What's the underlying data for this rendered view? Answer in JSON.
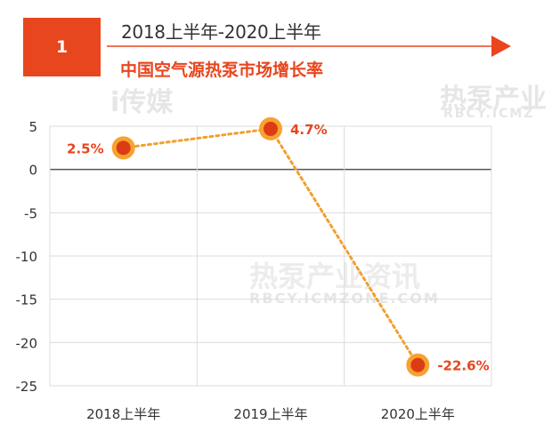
{
  "header": {
    "badge_number": "1",
    "period": "2018上半年-2020上半年",
    "title": "中国空气源热泵市场增长率"
  },
  "colors": {
    "accent": "#e8461e",
    "marker_ring": "#f7a230",
    "marker_core": "#dc3c14",
    "line": "#f0a030",
    "label": "#e8461e",
    "grid": "#dcdcdc",
    "zero_line": "#555555"
  },
  "watermarks": {
    "top_left_brand": "i传媒",
    "top_right_brand": "热泵产业",
    "top_right_url": "RBCY.ICMZ",
    "center_brand": "热泵产业资讯",
    "center_url": "RBCY.ICMZONE.COM"
  },
  "chart_data": {
    "type": "line",
    "categories": [
      "2018上半年",
      "2019上半年",
      "2020上半年"
    ],
    "series": [
      {
        "values": [
          2.5,
          4.7,
          -22.6
        ],
        "labels": [
          "2.5%",
          "4.7%",
          "-22.6%"
        ]
      }
    ],
    "title": "中国空气源热泵市场增长率",
    "xlabel": "",
    "ylabel": "",
    "ylim": [
      -25,
      5
    ],
    "yticks": [
      5,
      0,
      -5,
      -10,
      -15,
      -20,
      -25
    ],
    "grid": true
  }
}
